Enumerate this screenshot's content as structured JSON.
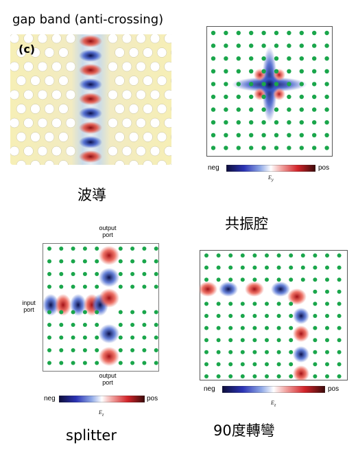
{
  "panel_waveguide": {
    "title": "gap band (anti-crossing)",
    "label": "(c)",
    "caption": "波導"
  },
  "panel_cavity": {
    "caption": "共振腔",
    "colorbar": {
      "neg": "neg",
      "pos": "pos",
      "field": "E"
    }
  },
  "panel_splitter": {
    "caption": "splitter",
    "output_top": "output port",
    "output_bottom": "output port",
    "input": "input port",
    "colorbar": {
      "neg": "neg",
      "pos": "pos",
      "field": "E"
    }
  },
  "panel_bend": {
    "caption": "90度轉彎",
    "colorbar": {
      "neg": "neg",
      "pos": "pos",
      "field": "E"
    }
  },
  "colors": {
    "dot_green": "#1aa64b",
    "field_blue": "#1a237e",
    "field_red": "#c0272d",
    "background_yellow": "#f6efb6"
  }
}
